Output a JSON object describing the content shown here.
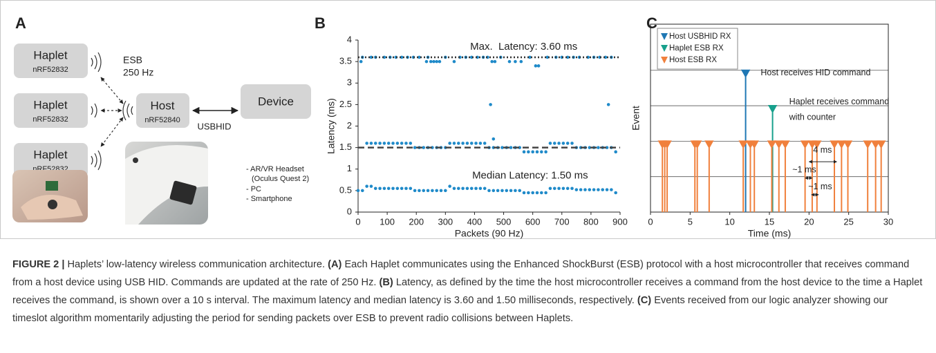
{
  "panel_a": {
    "label": "A",
    "haplets": [
      {
        "name": "Haplet",
        "chip": "nRF52832"
      },
      {
        "name": "Haplet",
        "chip": "nRF52832"
      },
      {
        "name": "Haplet",
        "chip": "nRF52832"
      }
    ],
    "esb": "ESB",
    "rate": "250 Hz",
    "host": {
      "name": "Host",
      "chip": "nRF52840"
    },
    "link": "USBHID",
    "device": "Device",
    "device_list": [
      "- AR/VR Headset",
      "(Oculus Quest 2)",
      "- PC",
      "- Smartphone"
    ]
  },
  "chart_data": [
    {
      "type": "scatter",
      "title": "B",
      "xlabel": "Packets (90 Hz)",
      "ylabel": "Latency (ms)",
      "xlim": [
        0,
        900
      ],
      "xticks": [
        0,
        100,
        200,
        300,
        400,
        500,
        600,
        700,
        800,
        900
      ],
      "ylim": [
        0,
        4
      ],
      "yticks": [
        0,
        0.5,
        1,
        1.5,
        2,
        2.5,
        3,
        3.5,
        4
      ],
      "series": [
        {
          "color": "#1f8ac9",
          "x": [
            0,
            15,
            30,
            45,
            60,
            75,
            90,
            105,
            120,
            135,
            150,
            165,
            180,
            195,
            210,
            225,
            240,
            255,
            270,
            285,
            300,
            315,
            330,
            345,
            360,
            375,
            390,
            405,
            420,
            435,
            450,
            465,
            480,
            495,
            510,
            525,
            540,
            555,
            570,
            585,
            600,
            615,
            630,
            645,
            660,
            675,
            690,
            705,
            720,
            735,
            750,
            765,
            780,
            795,
            810,
            825,
            840,
            855,
            870,
            885
          ],
          "values": [
            0.5,
            0.5,
            0.6,
            0.6,
            0.55,
            0.55,
            0.55,
            0.55,
            0.55,
            0.55,
            0.55,
            0.55,
            0.55,
            0.5,
            0.5,
            0.5,
            0.5,
            0.5,
            0.5,
            0.5,
            0.5,
            0.6,
            0.55,
            0.55,
            0.55,
            0.55,
            0.55,
            0.55,
            0.55,
            0.55,
            0.5,
            0.5,
            0.5,
            0.5,
            0.5,
            0.5,
            0.5,
            0.5,
            0.45,
            0.45,
            0.45,
            0.45,
            0.45,
            0.45,
            0.55,
            0.55,
            0.55,
            0.55,
            0.55,
            0.55,
            0.52,
            0.52,
            0.52,
            0.52,
            0.52,
            0.52,
            0.52,
            0.52,
            0.52,
            0.45
          ]
        },
        {
          "color": "#1f8ac9",
          "x": [
            30,
            45,
            60,
            75,
            90,
            105,
            120,
            135,
            150,
            165,
            180,
            195,
            210,
            225,
            240,
            255,
            270,
            285,
            300,
            315,
            330,
            345,
            360,
            375,
            390,
            405,
            420,
            435,
            450,
            465,
            480,
            495,
            510,
            525,
            540,
            555,
            570,
            585,
            600,
            615,
            630,
            645,
            660,
            675,
            690,
            705,
            720,
            735,
            750,
            765,
            780,
            795,
            810,
            825,
            840,
            855,
            870,
            885
          ],
          "values": [
            1.6,
            1.6,
            1.6,
            1.6,
            1.6,
            1.6,
            1.6,
            1.6,
            1.6,
            1.6,
            1.6,
            1.5,
            1.5,
            1.5,
            1.5,
            1.5,
            1.5,
            1.5,
            1.5,
            1.6,
            1.6,
            1.6,
            1.6,
            1.6,
            1.6,
            1.6,
            1.6,
            1.6,
            1.5,
            1.5,
            1.5,
            1.5,
            1.5,
            1.5,
            1.5,
            1.5,
            1.4,
            1.4,
            1.4,
            1.4,
            1.4,
            1.4,
            1.6,
            1.6,
            1.6,
            1.6,
            1.6,
            1.6,
            1.5,
            1.5,
            1.5,
            1.5,
            1.5,
            1.5,
            1.5,
            1.5,
            1.5,
            1.4
          ]
        },
        {
          "color": "#1f8ac9",
          "x": [
            10,
            15,
            45,
            60,
            90,
            110,
            130,
            150,
            170,
            190,
            210,
            235,
            240,
            250,
            260,
            270,
            280,
            300,
            330,
            350,
            370,
            390,
            410,
            430,
            445,
            455,
            460,
            465,
            470,
            490,
            520,
            540,
            560,
            590,
            610,
            620,
            650,
            680,
            700,
            720,
            740,
            760,
            790,
            810,
            830,
            850,
            860,
            870
          ],
          "values": [
            3.5,
            3.6,
            3.6,
            3.6,
            3.6,
            3.6,
            3.6,
            3.6,
            3.6,
            3.6,
            3.6,
            3.5,
            3.6,
            3.5,
            3.5,
            3.5,
            3.5,
            3.6,
            3.5,
            3.6,
            3.6,
            3.6,
            3.6,
            3.6,
            3.6,
            2.5,
            3.5,
            1.7,
            3.5,
            3.6,
            3.5,
            3.5,
            3.5,
            3.6,
            3.4,
            3.4,
            3.6,
            3.6,
            3.6,
            3.6,
            3.6,
            3.6,
            3.6,
            3.6,
            3.6,
            3.6,
            2.5,
            3.6
          ]
        }
      ],
      "hlines": [
        {
          "value": 3.6,
          "style": "dotted",
          "color": "#333333"
        },
        {
          "value": 1.5,
          "style": "dashed",
          "color": "#444444"
        }
      ],
      "annotations": [
        "Max.  Latency: 3.60 ms",
        "Median Latency: 1.50 ms"
      ]
    },
    {
      "type": "stem",
      "title": "C",
      "xlabel": "Time (ms)",
      "ylabel": "Event",
      "xlim": [
        0,
        30
      ],
      "xticks": [
        0,
        5,
        10,
        15,
        20,
        25,
        30
      ],
      "ylim": [
        0,
        5.3
      ],
      "ygrid": [
        1,
        2,
        3,
        4
      ],
      "legend": "upper left",
      "series": [
        {
          "name": "Host USBHID RX",
          "color": "#1f77b4",
          "x": [
            12.0
          ],
          "values": [
            4
          ]
        },
        {
          "name": "Haplet ESB RX",
          "color": "#17a08c",
          "x": [
            15.4
          ],
          "values": [
            3
          ]
        },
        {
          "name": "Host ESB RX",
          "color": "#f0803c",
          "x": [
            1.5,
            1.8,
            2.1,
            5.6,
            5.9,
            7.4,
            11.7,
            12.6,
            13.1,
            15.3,
            16.2,
            17.0,
            19.5,
            20.4,
            21.0,
            23.2,
            24.1,
            24.9,
            27.4,
            28.4,
            29.1
          ],
          "values": [
            2,
            2,
            2,
            2,
            2,
            2,
            2,
            2,
            2,
            2,
            2,
            2,
            2,
            2,
            2,
            2,
            2,
            2,
            2,
            2,
            2
          ]
        }
      ],
      "annotations": [
        "Host receives HID command",
        [
          "Haplet receives command",
          "with counter"
        ],
        "4 ms",
        "~1 ms",
        "~1 ms"
      ]
    }
  ],
  "caption": [
    {
      "text": "FIGURE 2 |",
      "bold": true
    },
    {
      "text": " Haplets’ low-latency wireless communication architecture. "
    },
    {
      "text": "(A)",
      "bold": true
    },
    {
      "text": " Each Haplet communicates using the Enhanced ShockBurst (ESB) protocol with a host microcontroller that receives command from a host device using USB HID. Commands are updated at the rate of 250 Hz. "
    },
    {
      "text": "(B)",
      "bold": true
    },
    {
      "text": " Latency, as defined by the time the host microcontroller receives a command from the host device to the time a Haplet receives the command, is shown over a 10 s interval. The maximum latency and median latency is 3.60 and 1.50 milliseconds, respectively. "
    },
    {
      "text": "(C)",
      "bold": true
    },
    {
      "text": " Events received from our logic analyzer showing our timeslot algorithm momentarily adjusting the period for sending packets over ESB to prevent radio collisions between Haplets."
    }
  ]
}
